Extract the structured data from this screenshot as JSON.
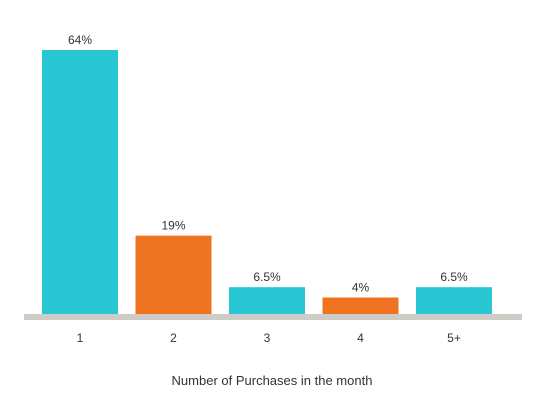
{
  "chart_data": {
    "type": "bar",
    "categories": [
      "1",
      "2",
      "3",
      "4",
      "5+"
    ],
    "values": [
      64,
      19,
      6.5,
      4,
      6.5
    ],
    "data_labels": [
      "64%",
      "19%",
      "6.5%",
      "4%",
      "6.5%"
    ],
    "bar_colors": [
      "#29c6d4",
      "#ef7422",
      "#29c6d4",
      "#ef7422",
      "#29c6d4"
    ],
    "axis_color": "#cfcbc6",
    "title": "",
    "xlabel": "Number of Purchases in the month",
    "ylabel": "",
    "ylim": [
      0,
      64
    ],
    "grid": false,
    "legend": "none"
  }
}
